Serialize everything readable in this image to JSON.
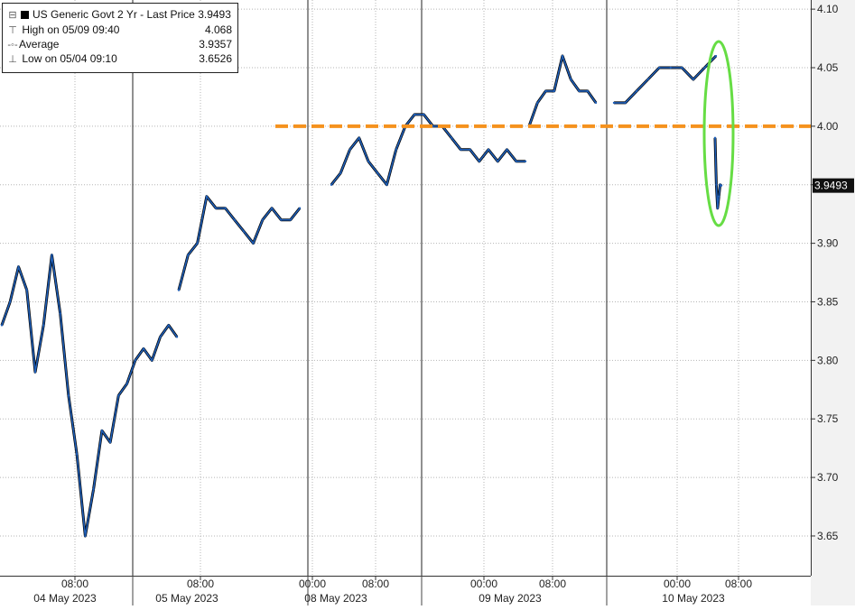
{
  "legend": {
    "title": "US Generic Govt 2 Yr - Last Price",
    "last_value": "3.9493",
    "high_label": "High on 05/09 09:40",
    "high_value": "4.068",
    "avg_label": "Average",
    "avg_value": "3.9357",
    "low_label": "Low on 05/04 09:10",
    "low_value": "3.6526"
  },
  "chart_data": {
    "type": "line",
    "title": "US Generic Govt 2 Yr - Last Price",
    "xlabel": "",
    "ylabel": "",
    "ylim": [
      3.61,
      4.11
    ],
    "yticks": [
      "4.10",
      "4.05",
      "4.00",
      "3.95",
      "3.90",
      "3.85",
      "3.80",
      "3.75",
      "3.70",
      "3.65"
    ],
    "last_price_label": "3.9493",
    "grid": true,
    "legend_position": "top-left",
    "x_time_labels": [
      "08:00",
      "08:00",
      "00:00",
      "08:00",
      "00:00",
      "08:00",
      "00:00",
      "08:00"
    ],
    "x_date_labels": [
      "04 May 2023",
      "05 May 2023",
      "08 May 2023",
      "09 May 2023",
      "10 May 2023"
    ],
    "reference_line": {
      "value": 4.0,
      "style": "dashed",
      "color": "#f5921e"
    },
    "highlight": {
      "shape": "ellipse",
      "color": "#66dd44",
      "covers": "10 May 2023 drop"
    },
    "series": [
      {
        "name": "US Generic Govt 2 Yr - Last Price",
        "color": "#1f5fb8",
        "segments": [
          {
            "day": "04 May 2023",
            "values": [
              3.83,
              3.85,
              3.88,
              3.86,
              3.79,
              3.83,
              3.89,
              3.84,
              3.77,
              3.72,
              3.65,
              3.69,
              3.74,
              3.73,
              3.77,
              3.78,
              3.8,
              3.81,
              3.8,
              3.82,
              3.83,
              3.82
            ]
          },
          {
            "day": "05 May 2023",
            "values": [
              3.86,
              3.89,
              3.9,
              3.94,
              3.93,
              3.93,
              3.92,
              3.91,
              3.9,
              3.92,
              3.93,
              3.92,
              3.92,
              3.93
            ]
          },
          {
            "day": "08 May 2023",
            "values": [
              3.95,
              3.96,
              3.98,
              3.99,
              3.97,
              3.96,
              3.95,
              3.98,
              4.0,
              4.01,
              4.01,
              4.0,
              4.0,
              3.99,
              3.98,
              3.98,
              3.97,
              3.98,
              3.97,
              3.98,
              3.97,
              3.97
            ]
          },
          {
            "day": "09 May 2023",
            "values": [
              4.0,
              4.02,
              4.03,
              4.03,
              4.06,
              4.04,
              4.03,
              4.03,
              4.02
            ]
          },
          {
            "day": "10 May 2023 (overnight)",
            "values": [
              4.02,
              4.02,
              4.03,
              4.04,
              4.05,
              4.05,
              4.05,
              4.04,
              4.05,
              4.06
            ]
          },
          {
            "day": "10 May 2023 (after drop)",
            "values": [
              3.99,
              3.95,
              3.93,
              3.94,
              3.95,
              3.9493
            ]
          }
        ]
      }
    ]
  }
}
